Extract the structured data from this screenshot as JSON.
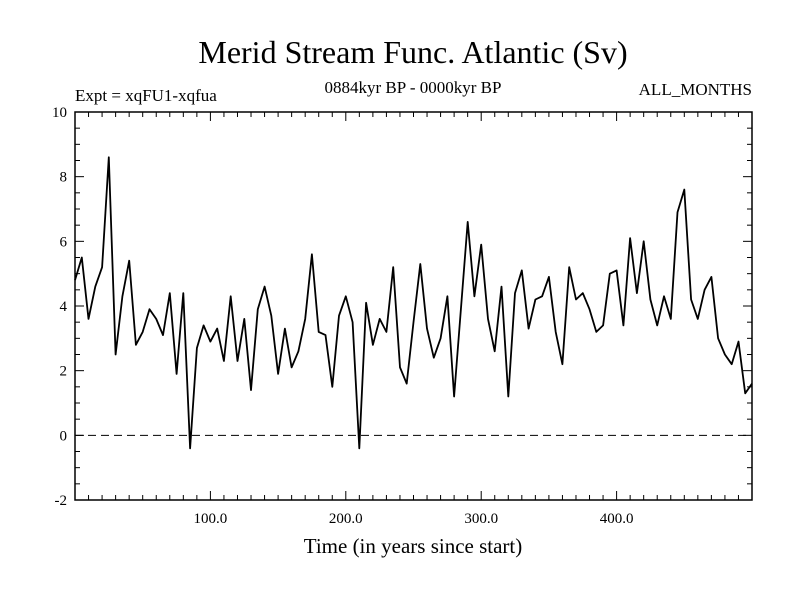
{
  "chart_data": {
    "type": "line",
    "title": "Merid Stream Func. Atlantic (Sv)",
    "subtitle_left": "Expt = xqFU1-xqfua",
    "subtitle_center": "0884kyr BP - 0000kyr BP",
    "subtitle_right": "ALL_MONTHS",
    "xlabel": "Time (in years since start)",
    "ylabel": "",
    "xlim": [
      0,
      500
    ],
    "ylim": [
      -2,
      10
    ],
    "x_ticks": [
      100,
      200,
      300,
      400
    ],
    "x_tick_labels": [
      "100.0",
      "200.0",
      "300.0",
      "400.0"
    ],
    "y_ticks": [
      -2,
      0,
      2,
      4,
      6,
      8,
      10
    ],
    "y_tick_labels": [
      "-2",
      "0",
      "2",
      "4",
      "6",
      "8",
      "10"
    ],
    "reference_line": {
      "y": 0,
      "style": "dashed"
    },
    "series": [
      {
        "name": "Merid Stream Func. Atlantic",
        "color": "#000000",
        "x": [
          0,
          5,
          10,
          15,
          20,
          25,
          30,
          35,
          40,
          45,
          50,
          55,
          60,
          65,
          70,
          75,
          80,
          85,
          90,
          95,
          100,
          105,
          110,
          115,
          120,
          125,
          130,
          135,
          140,
          145,
          150,
          155,
          160,
          165,
          170,
          175,
          180,
          185,
          190,
          195,
          200,
          205,
          210,
          215,
          220,
          225,
          230,
          235,
          240,
          245,
          250,
          255,
          260,
          265,
          270,
          275,
          280,
          285,
          290,
          295,
          300,
          305,
          310,
          315,
          320,
          325,
          330,
          335,
          340,
          345,
          350,
          355,
          360,
          365,
          370,
          375,
          380,
          385,
          390,
          395,
          400,
          405,
          410,
          415,
          420,
          425,
          430,
          435,
          440,
          445,
          450,
          455,
          460,
          465,
          470,
          475,
          480,
          485,
          490,
          495,
          500
        ],
        "values": [
          4.8,
          5.5,
          3.6,
          4.6,
          5.2,
          8.6,
          2.5,
          4.3,
          5.4,
          2.8,
          3.2,
          3.9,
          3.6,
          3.1,
          4.4,
          1.9,
          4.4,
          -0.4,
          2.7,
          3.4,
          2.9,
          3.3,
          2.3,
          4.3,
          2.3,
          3.6,
          1.4,
          3.9,
          4.6,
          3.7,
          1.9,
          3.3,
          2.1,
          2.6,
          3.6,
          5.6,
          3.2,
          3.1,
          1.5,
          3.7,
          4.3,
          3.5,
          -0.4,
          4.1,
          2.8,
          3.6,
          3.2,
          5.2,
          2.1,
          1.6,
          3.5,
          5.3,
          3.3,
          2.4,
          3.0,
          4.3,
          1.2,
          3.9,
          6.6,
          4.3,
          5.9,
          3.6,
          2.6,
          4.6,
          1.2,
          4.4,
          5.1,
          3.3,
          4.2,
          4.3,
          4.9,
          3.2,
          2.2,
          5.2,
          4.2,
          4.4,
          3.9,
          3.2,
          3.4,
          5.0,
          5.1,
          3.4,
          6.1,
          4.4,
          6.0,
          4.2,
          3.4,
          4.3,
          3.6,
          6.9,
          7.6,
          4.2,
          3.6,
          4.5,
          4.9,
          3.0,
          2.5,
          2.2,
          2.9,
          1.3,
          1.6
        ]
      }
    ]
  }
}
